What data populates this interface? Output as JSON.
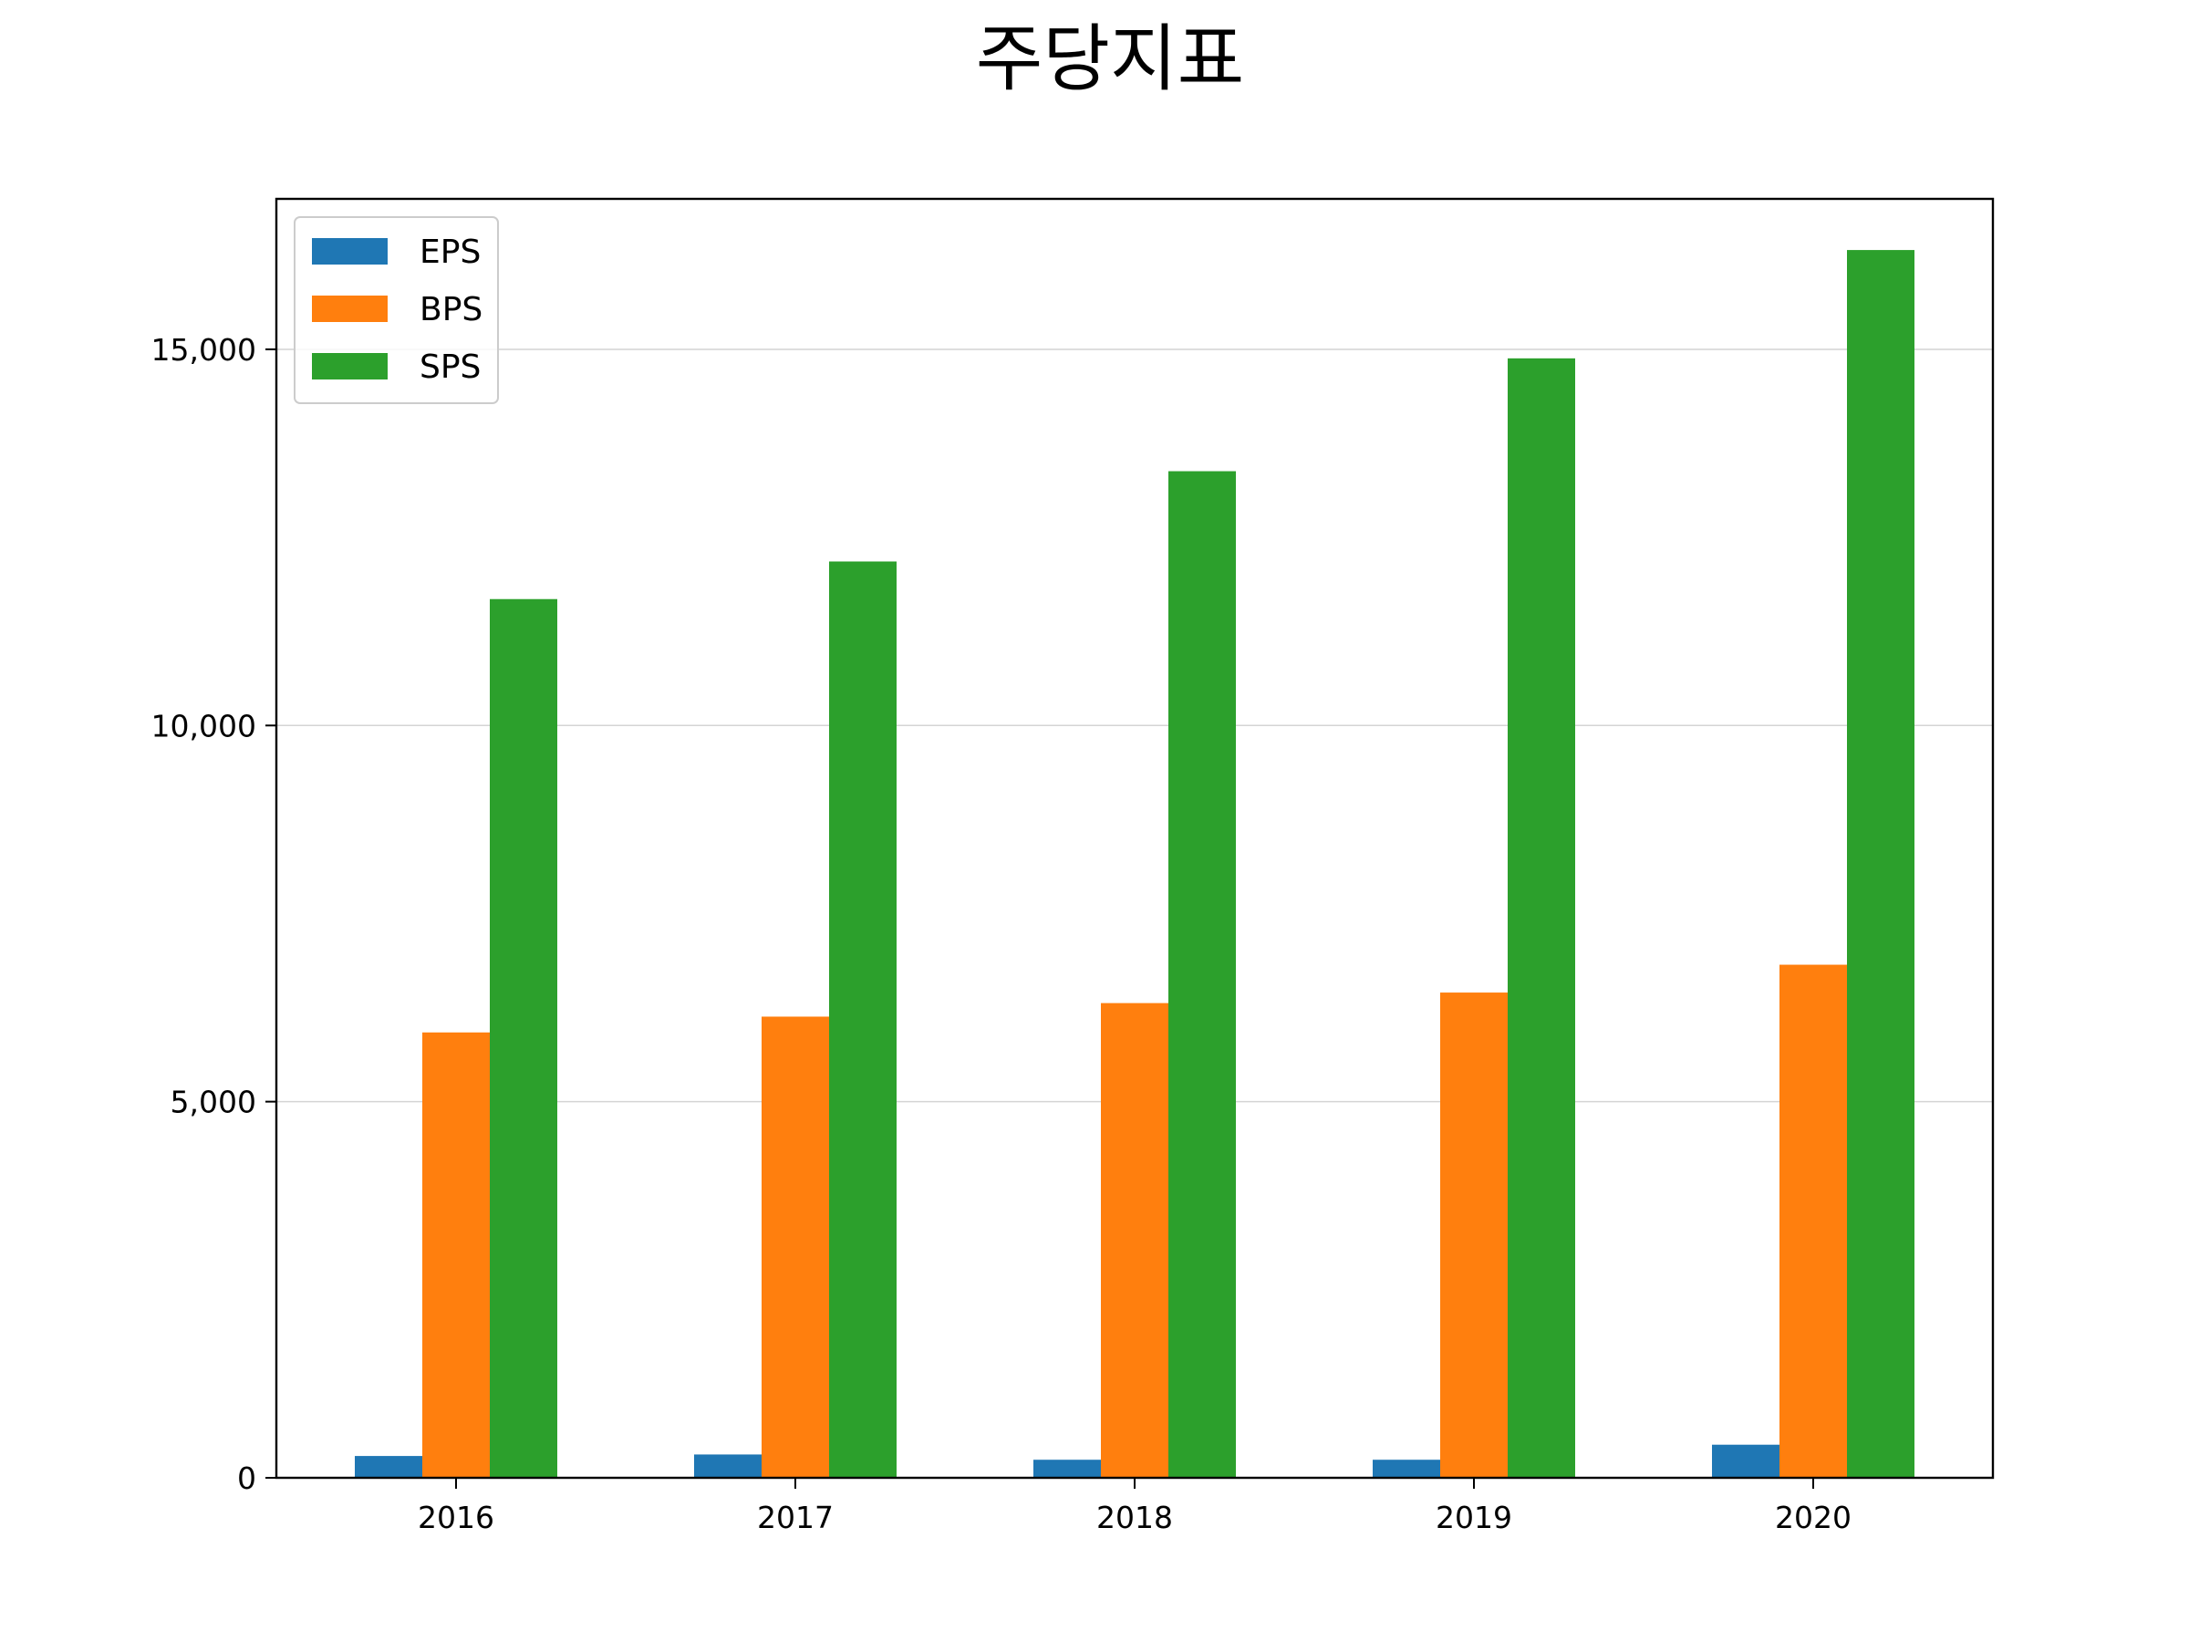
{
  "chart_data": {
    "type": "bar",
    "title": "주당지표",
    "xlabel": "",
    "ylabel": "",
    "categories": [
      "2016",
      "2017",
      "2018",
      "2019",
      "2020"
    ],
    "series": [
      {
        "name": "EPS",
        "color": "#1f77b4",
        "values": [
          290,
          310,
          240,
          240,
          440
        ]
      },
      {
        "name": "BPS",
        "color": "#ff7f0e",
        "values": [
          5920,
          6130,
          6310,
          6450,
          6820
        ]
      },
      {
        "name": "SPS",
        "color": "#2ca02c",
        "values": [
          11680,
          12180,
          13380,
          14880,
          16320
        ]
      }
    ],
    "ylim": [
      0,
      17000
    ],
    "yticks": [
      0,
      5000,
      10000,
      15000
    ],
    "ytick_labels": [
      "0",
      "5,000",
      "10,000",
      "15,000"
    ],
    "grid": "y",
    "legend_position": "upper-left"
  }
}
